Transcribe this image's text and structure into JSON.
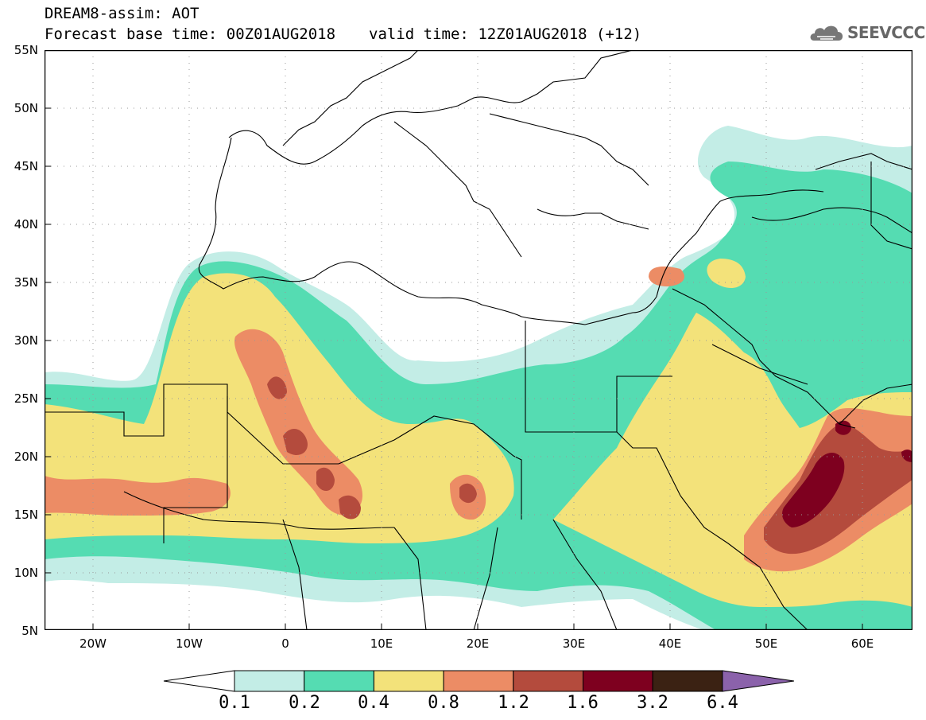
{
  "header": {
    "model_line": "DREAM8-assim: AOT",
    "base_time": "Forecast base time: 00Z01AUG2018",
    "valid_time": "valid time: 12Z01AUG2018 (+12)"
  },
  "logo": {
    "text": "SEEVCCC",
    "icon": "cloud-icon"
  },
  "map": {
    "extent": {
      "lon_min": -25,
      "lon_max": 65,
      "lat_min": 5,
      "lat_max": 55
    },
    "lat_labels": [
      "55N",
      "50N",
      "45N",
      "40N",
      "35N",
      "30N",
      "25N",
      "20N",
      "15N",
      "10N",
      "5N"
    ],
    "lon_labels": [
      "20W",
      "10W",
      "0",
      "10E",
      "20E",
      "30E",
      "40E",
      "50E",
      "60E"
    ],
    "variable": "AOT"
  },
  "colorbar": {
    "levels": [
      "0.1",
      "0.2",
      "0.4",
      "0.8",
      "1.2",
      "1.6",
      "3.2",
      "6.4"
    ],
    "colors": [
      "#ffffff",
      "#c3ede6",
      "#55dcb2",
      "#f3e27a",
      "#ec8c65",
      "#b44b3d",
      "#7e001f",
      "#3b2213",
      "#8b62ab"
    ]
  }
}
